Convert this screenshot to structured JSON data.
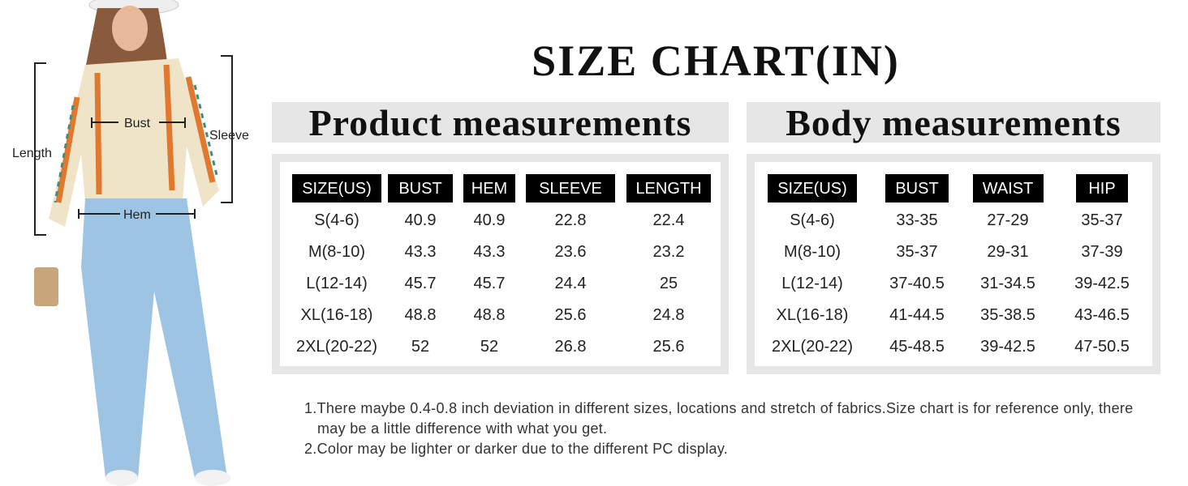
{
  "title": "SIZE CHART(IN)",
  "figure": {
    "labels": {
      "length": "Length",
      "bust": "Bust",
      "sleeve": "Sleeve",
      "hem": "Hem"
    }
  },
  "product_table": {
    "title": "Product measurements",
    "header": [
      "SIZE(US)",
      "BUST",
      "HEM",
      "SLEEVE",
      "LENGTH"
    ],
    "rows": [
      [
        "S(4-6)",
        "40.9",
        "40.9",
        "22.8",
        "22.4"
      ],
      [
        "M(8-10)",
        "43.3",
        "43.3",
        "23.6",
        "23.2"
      ],
      [
        "L(12-14)",
        "45.7",
        "45.7",
        "24.4",
        "25"
      ],
      [
        "XL(16-18)",
        "48.8",
        "48.8",
        "25.6",
        "24.8"
      ],
      [
        "2XL(20-22)",
        "52",
        "52",
        "26.8",
        "25.6"
      ]
    ]
  },
  "body_table": {
    "title": "Body measurements",
    "header": [
      "SIZE(US)",
      "BUST",
      "WAIST",
      "HIP"
    ],
    "rows": [
      [
        "S(4-6)",
        "33-35",
        "27-29",
        "35-37"
      ],
      [
        "M(8-10)",
        "35-37",
        "29-31",
        "37-39"
      ],
      [
        "L(12-14)",
        "37-40.5",
        "31-34.5",
        "39-42.5"
      ],
      [
        "XL(16-18)",
        "41-44.5",
        "35-38.5",
        "43-46.5"
      ],
      [
        "2XL(20-22)",
        "45-48.5",
        "39-42.5",
        "47-50.5"
      ]
    ]
  },
  "notes": [
    "1.There maybe 0.4-0.8 inch deviation in different sizes, locations and stretch of fabrics.Size chart is for reference only, there may be a little difference with what you get.",
    "2.Color may be lighter or darker due to the different PC display."
  ]
}
